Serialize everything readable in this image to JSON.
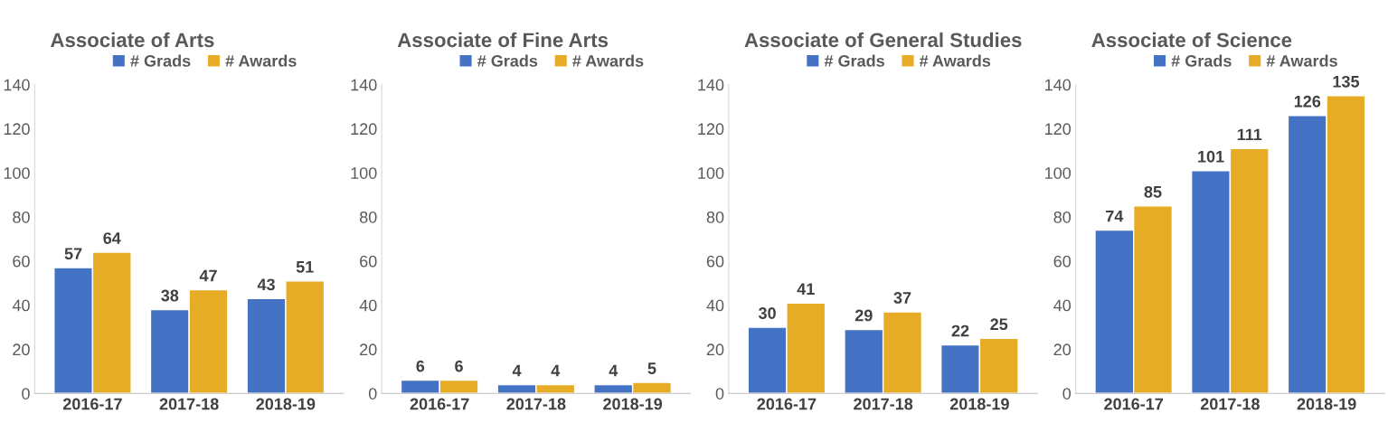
{
  "chart_data": [
    {
      "type": "bar",
      "title": "Associate of Arts",
      "categories": [
        "2016-17",
        "2017-18",
        "2018-19"
      ],
      "series": [
        {
          "name": "# Grads",
          "color": "#4472c4",
          "values": [
            57,
            38,
            43
          ]
        },
        {
          "name": "# Awards",
          "color": "#e6ac25",
          "values": [
            64,
            47,
            51
          ]
        }
      ],
      "ylim": [
        0,
        140
      ],
      "yticks": [
        0,
        20,
        40,
        60,
        80,
        100,
        120,
        140
      ],
      "data_labels": true,
      "legend": "top",
      "grid": false
    },
    {
      "type": "bar",
      "title": "Associate of Fine Arts",
      "categories": [
        "2016-17",
        "2017-18",
        "2018-19"
      ],
      "series": [
        {
          "name": "# Grads",
          "color": "#4472c4",
          "values": [
            6,
            4,
            4
          ]
        },
        {
          "name": "# Awards",
          "color": "#e6ac25",
          "values": [
            6,
            4,
            5
          ]
        }
      ],
      "ylim": [
        0,
        140
      ],
      "yticks": [
        0,
        20,
        40,
        60,
        80,
        100,
        120,
        140
      ],
      "data_labels": true,
      "legend": "top",
      "grid": false
    },
    {
      "type": "bar",
      "title": "Associate of General Studies",
      "categories": [
        "2016-17",
        "2017-18",
        "2018-19"
      ],
      "series": [
        {
          "name": "# Grads",
          "color": "#4472c4",
          "values": [
            30,
            29,
            22
          ]
        },
        {
          "name": "# Awards",
          "color": "#e6ac25",
          "values": [
            41,
            37,
            25
          ]
        }
      ],
      "ylim": [
        0,
        140
      ],
      "yticks": [
        0,
        20,
        40,
        60,
        80,
        100,
        120,
        140
      ],
      "data_labels": true,
      "legend": "top",
      "grid": false
    },
    {
      "type": "bar",
      "title": "Associate of Science",
      "categories": [
        "2016-17",
        "2017-18",
        "2018-19"
      ],
      "series": [
        {
          "name": "# Grads",
          "color": "#4472c4",
          "values": [
            74,
            101,
            126
          ]
        },
        {
          "name": "# Awards",
          "color": "#e6ac25",
          "values": [
            85,
            111,
            135
          ]
        }
      ],
      "ylim": [
        0,
        140
      ],
      "yticks": [
        0,
        20,
        40,
        60,
        80,
        100,
        120,
        140
      ],
      "data_labels": true,
      "legend": "top",
      "grid": false
    }
  ]
}
